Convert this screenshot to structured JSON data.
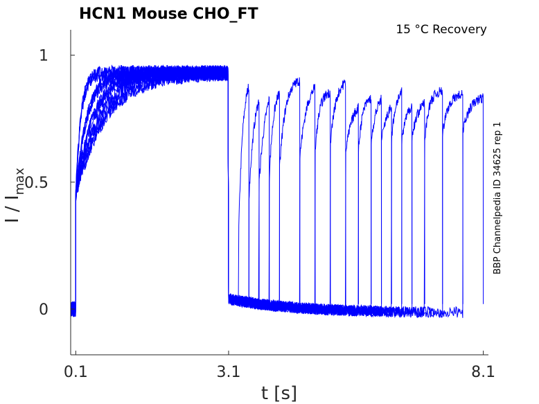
{
  "chart_data": {
    "type": "line",
    "title": "HCN1  Mouse  CHO_FT",
    "subtitle": "15 °C  Recovery",
    "xlabel": "t [s]",
    "ylabel_main": "I / I",
    "ylabel_sub": "max",
    "side_note": "BBP Channelpedia ID 34625 rep 1",
    "xlim": [
      0.0,
      8.2
    ],
    "ylim": [
      -0.18,
      1.1
    ],
    "xticks": [
      {
        "value": 0.1,
        "label": "0.1"
      },
      {
        "value": 3.1,
        "label": "3.1"
      },
      {
        "value": 8.1,
        "label": "8.1"
      }
    ],
    "yticks": [
      {
        "value": 0,
        "label": "0"
      },
      {
        "value": 0.5,
        "label": "0.5"
      },
      {
        "value": 1,
        "label": "1"
      }
    ],
    "line_color": "#0000ff",
    "activation_start": 0.1,
    "deactivation_time": 3.1,
    "activation_plateau": 0.93,
    "recovery_pulse_starts": [
      3.3,
      3.5,
      3.7,
      3.9,
      4.1,
      4.5,
      4.8,
      5.1,
      5.4,
      5.65,
      5.9,
      6.1,
      6.3,
      6.5,
      6.7,
      6.95,
      7.3,
      7.7
    ],
    "recovery_pulse_ends": [
      3.5,
      3.7,
      3.9,
      4.1,
      4.5,
      4.8,
      5.1,
      5.4,
      5.65,
      5.9,
      6.1,
      6.3,
      6.5,
      6.7,
      6.95,
      7.3,
      7.7,
      8.1
    ],
    "recovery_onset_levels": [
      0.32,
      0.44,
      0.5,
      0.52,
      0.55,
      0.6,
      0.62,
      0.66,
      0.62,
      0.63,
      0.66,
      0.66,
      0.67,
      0.66,
      0.68,
      0.66,
      0.69,
      0.7
    ],
    "recovery_peak_levels": [
      0.93,
      0.9,
      0.93,
      0.88,
      0.91,
      0.91,
      0.86,
      0.91,
      0.83,
      0.84,
      0.86,
      0.84,
      0.87,
      0.83,
      0.84,
      0.86,
      0.85,
      0.84
    ]
  }
}
